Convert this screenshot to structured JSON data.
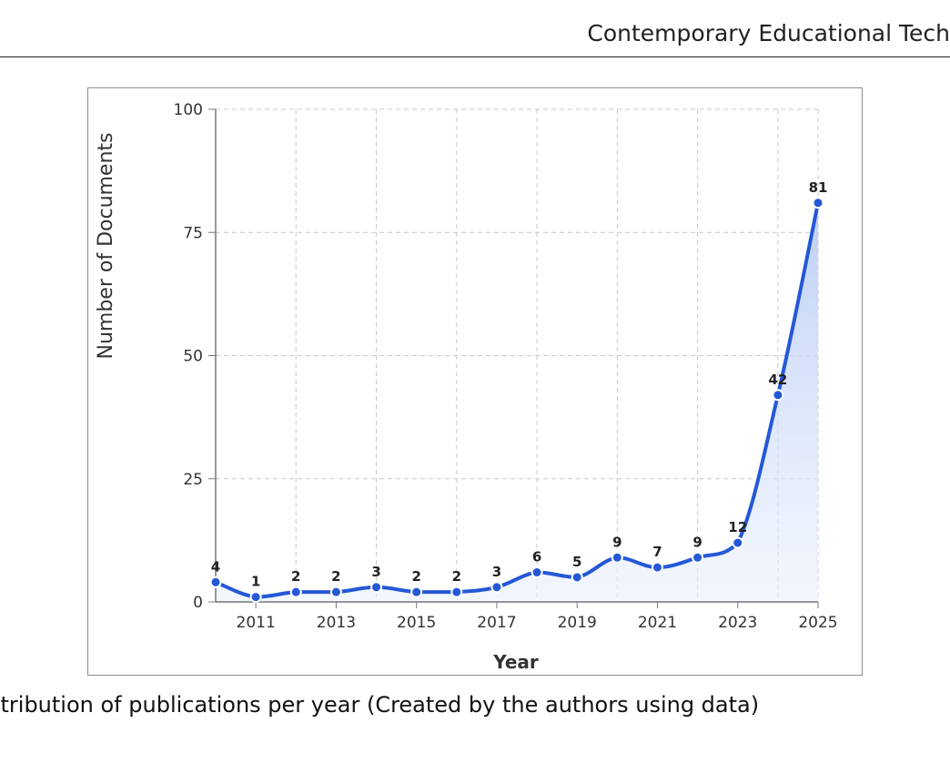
{
  "header": {
    "journal": "Contemporary Educational Tech"
  },
  "caption": "stribution of publications per year (Created by the authors using data)",
  "chart_data": {
    "type": "area",
    "title": "",
    "xlabel": "Year",
    "ylabel": "Number of Documents",
    "x": [
      2010,
      2011,
      2012,
      2013,
      2014,
      2015,
      2016,
      2017,
      2018,
      2019,
      2020,
      2021,
      2022,
      2023,
      2024,
      2025
    ],
    "values": [
      4,
      1,
      2,
      2,
      3,
      2,
      2,
      3,
      6,
      5,
      9,
      7,
      9,
      12,
      42,
      81
    ],
    "xticks": [
      "2011",
      "2013",
      "2015",
      "2017",
      "2019",
      "2021",
      "2023",
      "2025"
    ],
    "yticks": [
      "0",
      "25",
      "50",
      "75",
      "100"
    ],
    "ylim": [
      0,
      100
    ],
    "xlim": [
      2010,
      2025
    ],
    "grid": true,
    "line_color": "#2458d6",
    "fill_color": "#c9d8f7"
  }
}
